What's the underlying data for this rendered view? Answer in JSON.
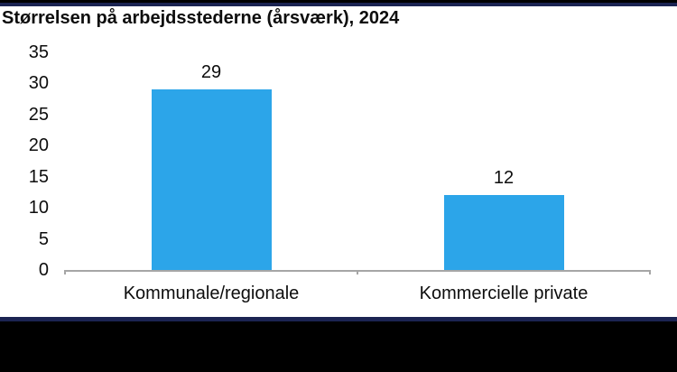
{
  "title": "Størrelsen på arbejdsstederne (årsværk), 2024",
  "theme": {
    "background": "#000000",
    "panel": "#FFFFFF",
    "navy_accent": "#1B2452",
    "black_border": "#000000",
    "text": "#0D0D0D"
  },
  "chart_data": {
    "type": "bar",
    "title": "Størrelsen på arbejdsstederne (årsværk), 2024",
    "categories": [
      "Kommunale/regionale",
      "Kommercielle private"
    ],
    "values": [
      29,
      12
    ],
    "data_labels": [
      "29",
      "12"
    ],
    "xlabel": "",
    "ylabel": "",
    "ylim": [
      0,
      35
    ],
    "yticks": [
      0,
      5,
      10,
      15,
      20,
      25,
      30,
      35
    ],
    "grid": false,
    "legend": false,
    "bar_color": "#2CA5E9",
    "axis_color": "#A6A6A6"
  }
}
